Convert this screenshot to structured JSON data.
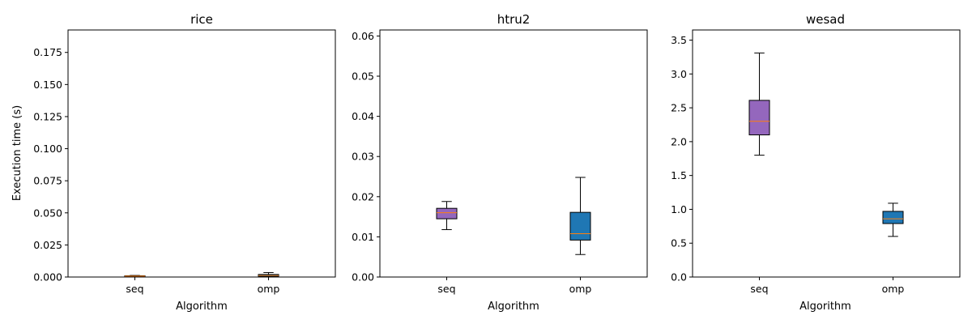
{
  "chart_data": [
    {
      "type": "box",
      "title": "rice",
      "xlabel": "Algorithm",
      "ylabel": "Execution time (s)",
      "ylim": [
        0,
        0.1925
      ],
      "yticks": [
        0.0,
        0.025,
        0.05,
        0.075,
        0.1,
        0.125,
        0.15,
        0.175
      ],
      "ytick_labels": [
        "0.000",
        "0.025",
        "0.050",
        "0.075",
        "0.100",
        "0.125",
        "0.150",
        "0.175"
      ],
      "categories": [
        "seq",
        "omp"
      ],
      "boxes": [
        {
          "category": "seq",
          "whisker_low": 0.0004,
          "q1": 0.0005,
          "median": 0.0007,
          "q3": 0.001,
          "whisker_high": 0.0012,
          "color": "#9467bd"
        },
        {
          "category": "omp",
          "whisker_low": 0.0002,
          "q1": 0.0005,
          "median": 0.0012,
          "q3": 0.002,
          "whisker_high": 0.0035,
          "color": "#1f77b4"
        }
      ]
    },
    {
      "type": "box",
      "title": "htru2",
      "xlabel": "Algorithm",
      "ylabel": "",
      "ylim": [
        0,
        0.0615
      ],
      "yticks": [
        0.0,
        0.01,
        0.02,
        0.03,
        0.04,
        0.05,
        0.06
      ],
      "ytick_labels": [
        "0.00",
        "0.01",
        "0.02",
        "0.03",
        "0.04",
        "0.05",
        "0.06"
      ],
      "categories": [
        "seq",
        "omp"
      ],
      "boxes": [
        {
          "category": "seq",
          "whisker_low": 0.0118,
          "q1": 0.0145,
          "median": 0.016,
          "q3": 0.0171,
          "whisker_high": 0.0188,
          "color": "#9467bd"
        },
        {
          "category": "omp",
          "whisker_low": 0.0056,
          "q1": 0.0092,
          "median": 0.0108,
          "q3": 0.0161,
          "whisker_high": 0.0248,
          "color": "#1f77b4"
        }
      ]
    },
    {
      "type": "box",
      "title": "wesad",
      "xlabel": "Algorithm",
      "ylabel": "",
      "ylim": [
        0,
        3.65
      ],
      "yticks": [
        0.0,
        0.5,
        1.0,
        1.5,
        2.0,
        2.5,
        3.0,
        3.5
      ],
      "ytick_labels": [
        "0.0",
        "0.5",
        "1.0",
        "1.5",
        "2.0",
        "2.5",
        "3.0",
        "3.5"
      ],
      "categories": [
        "seq",
        "omp"
      ],
      "boxes": [
        {
          "category": "seq",
          "whisker_low": 1.8,
          "q1": 2.1,
          "median": 2.3,
          "q3": 2.61,
          "whisker_high": 3.31,
          "color": "#9467bd"
        },
        {
          "category": "omp",
          "whisker_low": 0.6,
          "q1": 0.79,
          "median": 0.86,
          "q3": 0.97,
          "whisker_high": 1.09,
          "color": "#1f77b4"
        }
      ]
    }
  ],
  "colors": {
    "median": "#ff7f0e",
    "box_edge": "#000000",
    "seq_box": "#9467bd",
    "omp_box": "#1f77b4"
  }
}
